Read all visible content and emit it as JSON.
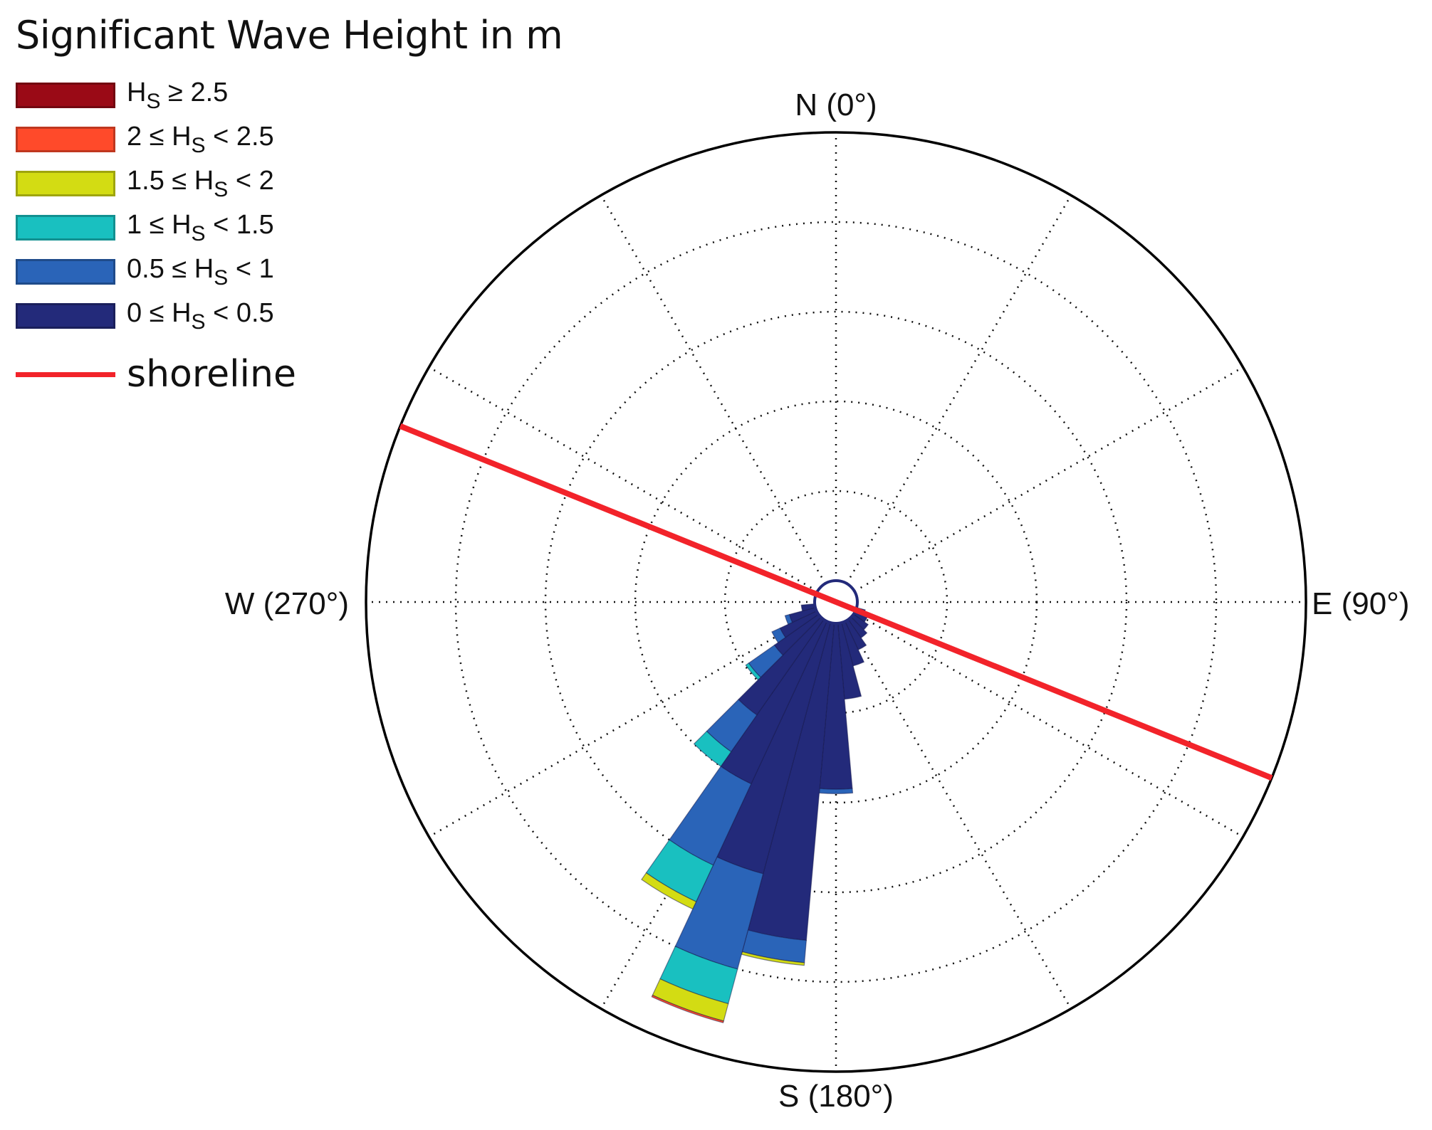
{
  "colors": {
    "bin_0": "#232a7a",
    "bin_1": "#2a64b8",
    "bin_2": "#19c0c0",
    "bin_3": "#d3dc13",
    "bin_4": "#ff4a2a",
    "bin_5": "#9a0a16",
    "shoreline": "#f2232a",
    "grid": "#111111"
  },
  "legend": {
    "title": "Significant Wave Height in m",
    "items": [
      {
        "prefix": "H",
        "sub": "S",
        "suffix": " ≥ 2.5",
        "color": "#9a0a16"
      },
      {
        "prefix": "2 ≤ H",
        "sub": "S",
        "suffix": " < 2.5",
        "color": "#ff4a2a"
      },
      {
        "prefix": "1.5 ≤ H",
        "sub": "S",
        "suffix": " < 2",
        "color": "#d3dc13"
      },
      {
        "prefix": "1 ≤ H",
        "sub": "S",
        "suffix": " < 1.5",
        "color": "#19c0c0"
      },
      {
        "prefix": "0.5 ≤ H",
        "sub": "S",
        "suffix": " < 1",
        "color": "#2a64b8"
      },
      {
        "prefix": "0 ≤ H",
        "sub": "S",
        "suffix": " < 0.5",
        "color": "#232a7a"
      }
    ],
    "shoreline_label": "shoreline"
  },
  "directions": {
    "north": "N (0°)",
    "east": "E (90°)",
    "south": "S (180°)",
    "west": "W (270°)"
  },
  "chart_data": {
    "type": "windrose",
    "title": "Significant Wave Height in m",
    "angle_convention": "compass, clockwise from north",
    "sector_width_deg": 10,
    "rings": 5,
    "radial_max": 5,
    "hs_bins": [
      "0 ≤ Hs < 0.5",
      "0.5 ≤ Hs < 1",
      "1 ≤ Hs < 1.5",
      "1.5 ≤ Hs < 2",
      "2 ≤ Hs < 2.5",
      "Hs ≥ 2.5"
    ],
    "sectors": [
      {
        "direction": 110,
        "stack": [
          0.1,
          0.0,
          0.0,
          0.0,
          0.0,
          0.0
        ]
      },
      {
        "direction": 120,
        "stack": [
          0.15,
          0.0,
          0.0,
          0.0,
          0.0,
          0.0
        ]
      },
      {
        "direction": 130,
        "stack": [
          0.2,
          0.0,
          0.0,
          0.0,
          0.0,
          0.0
        ]
      },
      {
        "direction": 140,
        "stack": [
          0.25,
          0.0,
          0.0,
          0.0,
          0.0,
          0.0
        ]
      },
      {
        "direction": 150,
        "stack": [
          0.35,
          0.0,
          0.0,
          0.0,
          0.0,
          0.0
        ]
      },
      {
        "direction": 160,
        "stack": [
          0.5,
          0.0,
          0.0,
          0.0,
          0.0,
          0.0
        ]
      },
      {
        "direction": 170,
        "stack": [
          0.85,
          0.0,
          0.0,
          0.0,
          0.0,
          0.0
        ]
      },
      {
        "direction": 180,
        "stack": [
          1.85,
          0.05,
          0.0,
          0.0,
          0.0,
          0.0
        ]
      },
      {
        "direction": 190,
        "stack": [
          3.55,
          0.25,
          0.0,
          0.03,
          0.0,
          0.0
        ]
      },
      {
        "direction": 200,
        "stack": [
          2.9,
          1.1,
          0.4,
          0.2,
          0.02,
          0.0
        ]
      },
      {
        "direction": 210,
        "stack": [
          2.0,
          1.0,
          0.45,
          0.09,
          0.0,
          0.0
        ]
      },
      {
        "direction": 220,
        "stack": [
          1.3,
          0.5,
          0.2,
          0.0,
          0.0,
          0.0
        ]
      },
      {
        "direction": 230,
        "stack": [
          0.6,
          0.35,
          0.04,
          0.0,
          0.0,
          0.0
        ]
      },
      {
        "direction": 240,
        "stack": [
          0.45,
          0.1,
          0.0,
          0.0,
          0.0,
          0.0
        ]
      },
      {
        "direction": 250,
        "stack": [
          0.3,
          0.05,
          0.0,
          0.0,
          0.0,
          0.0
        ]
      },
      {
        "direction": 260,
        "stack": [
          0.15,
          0.0,
          0.0,
          0.0,
          0.0,
          0.0
        ]
      }
    ],
    "shoreline_orientation_deg": [
      292,
      112
    ]
  }
}
